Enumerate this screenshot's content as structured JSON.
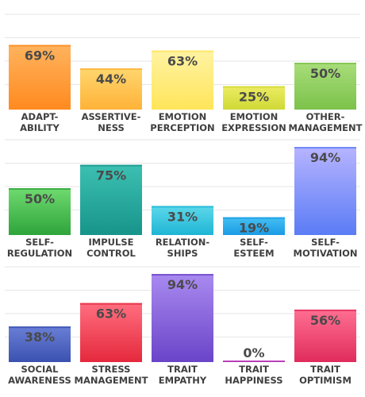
{
  "chart_data": [
    {
      "type": "bar",
      "ylim": [
        0,
        100
      ],
      "grid": true,
      "categories": [
        [
          "ADAPT-",
          "ABILITY"
        ],
        [
          "ASSERTIVE-",
          "NESS"
        ],
        [
          "EMOTION",
          "PERCEPTION"
        ],
        [
          "EMOTION",
          "EXPRESSION"
        ],
        [
          "OTHER-",
          "MANAGEMENT"
        ]
      ],
      "values": [
        69,
        44,
        63,
        25,
        50
      ],
      "value_labels": [
        "69%",
        "44%",
        "63%",
        "25%",
        "50%"
      ],
      "colors": [
        [
          "#ffb35e",
          "#ff8a1f"
        ],
        [
          "#ffd66e",
          "#ffb238"
        ],
        [
          "#fff3a3",
          "#ffe55a"
        ],
        [
          "#ecec64",
          "#cfd935"
        ],
        [
          "#a8dd7a",
          "#7cc24a"
        ]
      ]
    },
    {
      "type": "bar",
      "ylim": [
        0,
        100
      ],
      "grid": true,
      "categories": [
        [
          "SELF-",
          "REGULATION"
        ],
        [
          "IMPULSE",
          "CONTROL"
        ],
        [
          "RELATION-",
          "SHIPS"
        ],
        [
          "SELF-",
          "ESTEEM"
        ],
        [
          "SELF-",
          "MOTIVATION"
        ]
      ],
      "values": [
        50,
        75,
        31,
        19,
        94
      ],
      "value_labels": [
        "50%",
        "75%",
        "31%",
        "19%",
        "94%"
      ],
      "colors": [
        [
          "#6fda6f",
          "#2ea43b"
        ],
        [
          "#3cc0b2",
          "#17948a"
        ],
        [
          "#5cd8ea",
          "#1fb5d5"
        ],
        [
          "#45c0f2",
          "#1a9be6"
        ],
        [
          "#b7b4ff",
          "#5a7cf5"
        ]
      ]
    },
    {
      "type": "bar",
      "ylim": [
        0,
        100
      ],
      "grid": true,
      "categories": [
        [
          "SOCIAL",
          "AWARENESS"
        ],
        [
          "STRESS",
          "MANAGEMENT"
        ],
        [
          "TRAIT",
          "EMPATHY"
        ],
        [
          "TRAIT",
          "HAPPINESS"
        ],
        [
          "TRAIT",
          "OPTIMISM"
        ]
      ],
      "values": [
        38,
        63,
        94,
        0,
        56
      ],
      "value_labels": [
        "38%",
        "63%",
        "94%",
        "0%",
        "56%"
      ],
      "colors": [
        [
          "#6a7fd6",
          "#3b52b0"
        ],
        [
          "#ff6f7f",
          "#e5283d"
        ],
        [
          "#a98af0",
          "#6a44c8"
        ],
        [
          "#d45bd4",
          "#a02aa0"
        ],
        [
          "#ff6f92",
          "#e02c5c"
        ]
      ]
    }
  ]
}
